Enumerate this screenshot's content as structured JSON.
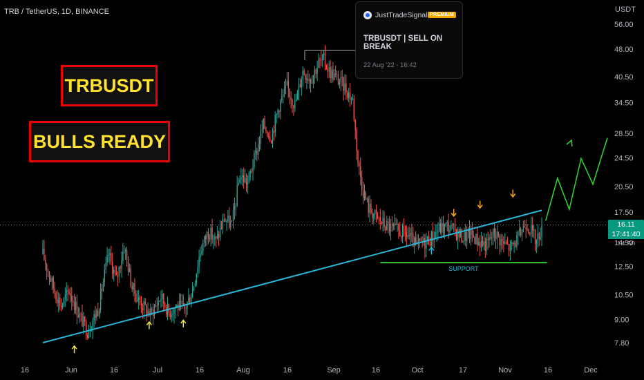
{
  "symbol_header": "TRB / TetherUS, 1D, BINANCE",
  "currency": "USDT",
  "labels": {
    "title": "TRBUSDT",
    "subtitle": "BULLS READY",
    "support": "SUPPORT"
  },
  "price_tags": {
    "last_price": "16.11",
    "countdown": "17:41:40",
    "partial": "14.50"
  },
  "idea_card": {
    "author": "JustTradeSignals",
    "badge": "PREMIUM",
    "title": "TRBUSDT | SELL ON BREAK",
    "date": "22 Aug '22 - 16:42"
  },
  "colors": {
    "background": "#000000",
    "bull": "#26a69a",
    "bear": "#ef5350",
    "trendline": "#29b6d8",
    "support": "#33cc33",
    "projection": "#33cc33",
    "label_text": "#ffe12e",
    "label_border": "#ee0000",
    "price_tag": "#089981",
    "arrow_up": "#f5e94a",
    "arrow_down": "#f5a623",
    "arrow_cyan": "#29b6d8"
  },
  "chart_data": {
    "type": "candlestick",
    "y_scale": "log",
    "ylim": [
      6.9,
      62
    ],
    "y_ticks": [
      "56.00",
      "48.00",
      "40.50",
      "34.50",
      "28.50",
      "24.50",
      "20.50",
      "17.50",
      "14.50",
      "12.50",
      "10.50",
      "9.00",
      "7.80"
    ],
    "x_ticks": [
      "16",
      "Jun",
      "16",
      "Jul",
      "16",
      "Aug",
      "16",
      "Sep",
      "16",
      "Oct",
      "17",
      "Nov",
      "16",
      "Dec"
    ],
    "current_price": 16.11,
    "price_path": [
      [
        0,
        13.5
      ],
      [
        8,
        11
      ],
      [
        14,
        9.8
      ],
      [
        20,
        10.8
      ],
      [
        28,
        9.2
      ],
      [
        34,
        8.4
      ],
      [
        42,
        9.6
      ],
      [
        50,
        13.5
      ],
      [
        56,
        11.5
      ],
      [
        62,
        14.2
      ],
      [
        68,
        11
      ],
      [
        74,
        10
      ],
      [
        82,
        9.3
      ],
      [
        90,
        10.4
      ],
      [
        96,
        9.4
      ],
      [
        102,
        9.8
      ],
      [
        108,
        9.6
      ],
      [
        114,
        10.8
      ],
      [
        120,
        13.8
      ],
      [
        126,
        15.6
      ],
      [
        132,
        14.6
      ],
      [
        138,
        16.8
      ],
      [
        144,
        16.2
      ],
      [
        150,
        22
      ],
      [
        156,
        21
      ],
      [
        162,
        25
      ],
      [
        168,
        30
      ],
      [
        174,
        28
      ],
      [
        180,
        34
      ],
      [
        186,
        38
      ],
      [
        192,
        34
      ],
      [
        198,
        42
      ],
      [
        204,
        40
      ],
      [
        210,
        44
      ],
      [
        214,
        45
      ],
      [
        218,
        42
      ],
      [
        224,
        40
      ],
      [
        230,
        38
      ],
      [
        236,
        35
      ],
      [
        240,
        24
      ],
      [
        244,
        20
      ],
      [
        248,
        18
      ],
      [
        254,
        17
      ],
      [
        260,
        16.2
      ],
      [
        266,
        15.8
      ],
      [
        272,
        15.5
      ],
      [
        278,
        15.2
      ],
      [
        284,
        14.2
      ],
      [
        290,
        14.5
      ],
      [
        296,
        15
      ],
      [
        302,
        15.8
      ],
      [
        308,
        16.1
      ],
      [
        314,
        15.5
      ],
      [
        320,
        15
      ],
      [
        326,
        15.3
      ],
      [
        332,
        14.6
      ],
      [
        338,
        14.3
      ],
      [
        344,
        15.5
      ],
      [
        350,
        14.5
      ],
      [
        356,
        14
      ],
      [
        362,
        14.9
      ],
      [
        368,
        16.5
      ],
      [
        372,
        15.6
      ],
      [
        376,
        14.6
      ],
      [
        380,
        16.11
      ]
    ],
    "trendline": {
      "from": [
        0,
        7.8
      ],
      "to": [
        380,
        17.7
      ]
    },
    "support_line": {
      "price": 12.8,
      "from_day": 257,
      "to_day": 384,
      "label": "SUPPORT"
    },
    "projection": [
      [
        383,
        16.6
      ],
      [
        392,
        21.6
      ],
      [
        401,
        17.8
      ],
      [
        410,
        24.4
      ],
      [
        419,
        20.8
      ],
      [
        430,
        27.7
      ]
    ],
    "arrows_up": [
      [
        24,
        7.5
      ],
      [
        81,
        8.7
      ],
      [
        107,
        8.8
      ]
    ],
    "arrows_up_cyan": [
      [
        296,
        13.8
      ]
    ],
    "arrows_down": [
      [
        313,
        17.4
      ],
      [
        333,
        18.3
      ],
      [
        358,
        19.6
      ]
    ]
  }
}
